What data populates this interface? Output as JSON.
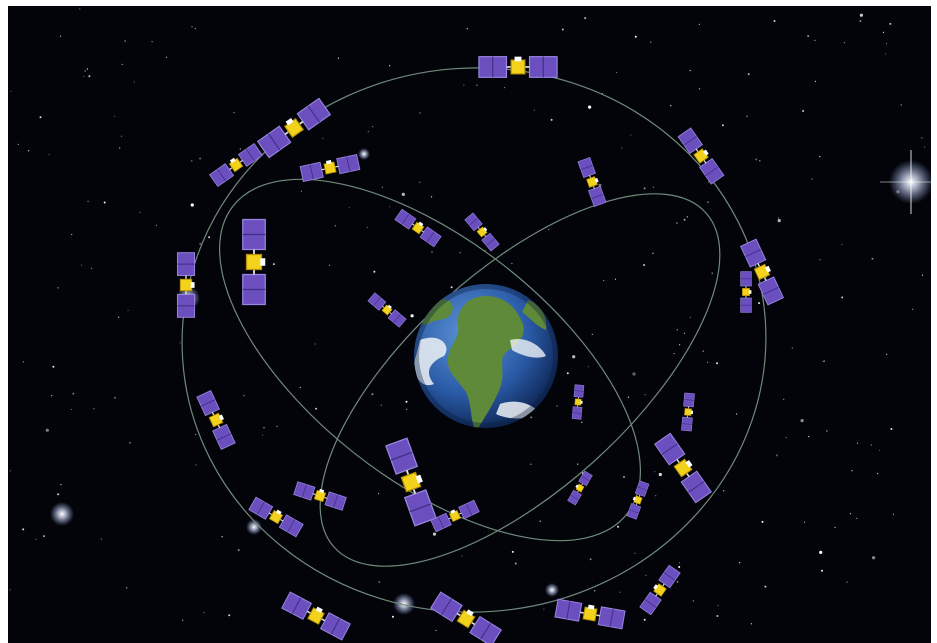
{
  "scene": {
    "subject": "satellite-constellation-around-earth",
    "colors": {
      "space": "#03040a",
      "frame": "#ffffff",
      "orbit": "#6f8a7a",
      "panel": "#6b4fbf",
      "panel_edge": "#9a86e0",
      "panel_dark": "#3f2e85",
      "body": "#f2d21a",
      "body_dark": "#b8900a",
      "ocean": "#2c5fae",
      "land": "#5e8a3a",
      "cloud": "#eef2f6"
    },
    "satellite_count": 27,
    "orbit_count": 3
  }
}
